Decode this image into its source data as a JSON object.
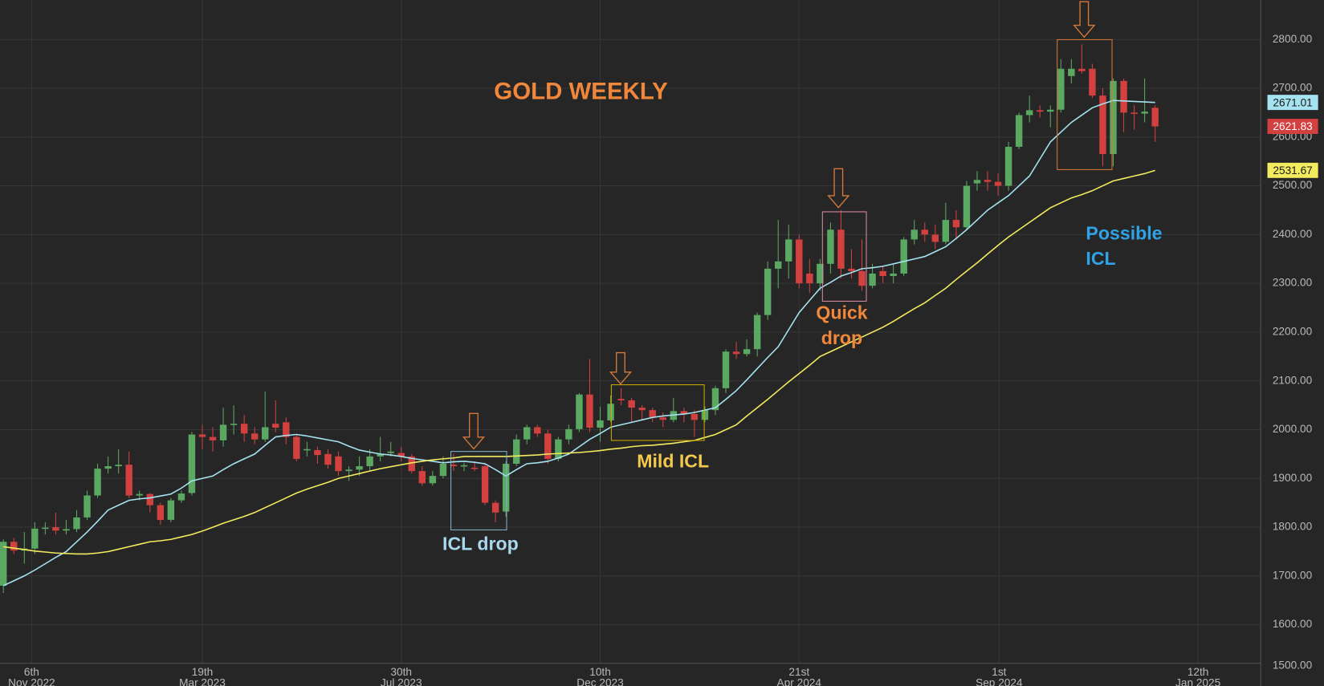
{
  "chart_data": {
    "type": "candlestick",
    "title": "GOLD WEEKLY",
    "open": [
      1680,
      1770,
      1752,
      1756,
      1797,
      1800,
      1793,
      1796,
      1820,
      1865,
      1920,
      1925,
      1928,
      1865,
      1868,
      1845,
      1815,
      1855,
      1870,
      1990,
      1985,
      1978,
      2010,
      2012,
      1992,
      1980,
      2012,
      2015,
      1985,
      1958,
      1958,
      1950,
      1945,
      1915,
      1918,
      1925,
      1945,
      1952,
      1952,
      1945,
      1915,
      1890,
      1905,
      1928,
      1925,
      1922,
      1925,
      1850,
      1832,
      1930,
      1980,
      2005,
      1992,
      1940,
      1980,
      2001,
      2072,
      2004,
      2019,
      2063,
      2060,
      2045,
      2040,
      2025,
      2020,
      2038,
      2032,
      2020,
      2040,
      2085,
      2160,
      2155,
      2165,
      2235,
      2330,
      2345,
      2390,
      2320,
      2300,
      2340,
      2410,
      2330,
      2325,
      2295,
      2325,
      2315,
      2320,
      2390,
      2410,
      2400,
      2385,
      2430,
      2415,
      2505,
      2512,
      2508,
      2500,
      2580,
      2645,
      2655,
      2652,
      2656,
      2725,
      2740,
      2740,
      2685,
      2565,
      2715,
      2650,
      2648,
      2660
    ],
    "high": [
      1775,
      1778,
      1790,
      1810,
      1810,
      1830,
      1815,
      1835,
      1875,
      1930,
      1945,
      1960,
      1955,
      1875,
      1870,
      1850,
      1860,
      1875,
      1995,
      2010,
      2005,
      2045,
      2050,
      2030,
      2005,
      2078,
      2060,
      2025,
      1990,
      1975,
      1965,
      1960,
      1955,
      1925,
      1945,
      1960,
      1985,
      1975,
      1965,
      1950,
      1925,
      1915,
      1945,
      1950,
      1932,
      1935,
      1930,
      1855,
      1935,
      1990,
      2010,
      2010,
      2000,
      1985,
      2010,
      2075,
      2145,
      2047,
      2070,
      2085,
      2065,
      2050,
      2045,
      2035,
      2065,
      2045,
      2040,
      2048,
      2090,
      2165,
      2180,
      2185,
      2240,
      2345,
      2430,
      2420,
      2400,
      2350,
      2350,
      2425,
      2450,
      2370,
      2390,
      2340,
      2335,
      2340,
      2395,
      2430,
      2425,
      2420,
      2465,
      2450,
      2510,
      2530,
      2530,
      2525,
      2590,
      2650,
      2685,
      2665,
      2665,
      2760,
      2760,
      2790,
      2750,
      2700,
      2720,
      2720,
      2665,
      2720,
      2665
    ],
    "low": [
      1665,
      1745,
      1725,
      1745,
      1785,
      1785,
      1785,
      1790,
      1815,
      1860,
      1910,
      1910,
      1860,
      1855,
      1830,
      1805,
      1810,
      1850,
      1865,
      1960,
      1955,
      1965,
      1990,
      1975,
      1970,
      1975,
      1995,
      1970,
      1935,
      1945,
      1930,
      1920,
      1905,
      1895,
      1905,
      1915,
      1935,
      1945,
      1935,
      1910,
      1885,
      1885,
      1900,
      1915,
      1915,
      1915,
      1845,
      1810,
      1822,
      1925,
      1970,
      1985,
      1930,
      1935,
      1970,
      1995,
      1995,
      1975,
      2015,
      2050,
      2015,
      2020,
      2015,
      2005,
      2015,
      2015,
      1985,
      2015,
      2030,
      2075,
      2145,
      2150,
      2150,
      2225,
      2290,
      2310,
      2290,
      2280,
      2285,
      2320,
      2310,
      2310,
      2285,
      2290,
      2300,
      2300,
      2315,
      2380,
      2385,
      2370,
      2380,
      2390,
      2410,
      2490,
      2490,
      2480,
      2490,
      2575,
      2630,
      2640,
      2620,
      2650,
      2710,
      2730,
      2680,
      2540,
      2540,
      2610,
      2615,
      2630,
      2590
    ],
    "close": [
      1770,
      1752,
      1756,
      1797,
      1799,
      1793,
      1796,
      1820,
      1865,
      1920,
      1925,
      1928,
      1865,
      1868,
      1845,
      1815,
      1855,
      1869,
      1990,
      1985,
      1978,
      2010,
      2012,
      1992,
      1980,
      2005,
      2004,
      1985,
      1940,
      1960,
      1948,
      1928,
      1915,
      1918,
      1925,
      1945,
      1950,
      1955,
      1945,
      1915,
      1890,
      1905,
      1930,
      1925,
      1927,
      1920,
      1850,
      1830,
      1930,
      1980,
      2005,
      1992,
      1940,
      1980,
      2001,
      2072,
      2004,
      2019,
      2053,
      2060,
      2045,
      2040,
      2025,
      2020,
      2038,
      2032,
      2020,
      2040,
      2085,
      2160,
      2155,
      2165,
      2235,
      2330,
      2345,
      2390,
      2300,
      2300,
      2340,
      2410,
      2330,
      2325,
      2295,
      2320,
      2315,
      2320,
      2390,
      2410,
      2400,
      2385,
      2430,
      2415,
      2500,
      2512,
      2508,
      2500,
      2580,
      2645,
      2655,
      2652,
      2656,
      2740,
      2740,
      2735,
      2685,
      2565,
      2715,
      2650,
      2648,
      2652,
      2621.83
    ],
    "up_color": "#5aa862",
    "down_color": "#d2403f",
    "lines": [
      {
        "color": "#a6e3f0",
        "values": [
          1680,
          1690,
          1700,
          1712,
          1725,
          1738,
          1750,
          1770,
          1790,
          1812,
          1835,
          1845,
          1855,
          1858,
          1860,
          1864,
          1868,
          1880,
          1895,
          1900,
          1905,
          1918,
          1930,
          1940,
          1950,
          1968,
          1985,
          1988,
          1990,
          1987,
          1983,
          1979,
          1975,
          1966,
          1958,
          1954,
          1950,
          1948,
          1945,
          1941,
          1938,
          1935,
          1932,
          1934,
          1935,
          1933,
          1930,
          1918,
          1905,
          1918,
          1930,
          1932,
          1935,
          1942,
          1950,
          1965,
          1980,
          1992,
          2005,
          2010,
          2015,
          2020,
          2025,
          2028,
          2030,
          2032,
          2035,
          2040,
          2045,
          2062,
          2080,
          2102,
          2125,
          2148,
          2170,
          2205,
          2240,
          2265,
          2290,
          2302,
          2315,
          2322,
          2330,
          2332,
          2335,
          2340,
          2345,
          2350,
          2355,
          2365,
          2375,
          2392,
          2410,
          2430,
          2450,
          2465,
          2480,
          2500,
          2520,
          2555,
          2590,
          2610,
          2630,
          2645,
          2660,
          2668,
          2675,
          2674,
          2673,
          2672,
          2671.01
        ]
      },
      {
        "color": "#f3ec5e",
        "values": [
          1760,
          1757,
          1754,
          1751,
          1749,
          1747,
          1746,
          1745,
          1745,
          1747,
          1750,
          1755,
          1760,
          1765,
          1770,
          1772,
          1775,
          1780,
          1785,
          1792,
          1800,
          1808,
          1815,
          1822,
          1830,
          1840,
          1850,
          1860,
          1870,
          1878,
          1885,
          1892,
          1900,
          1905,
          1910,
          1915,
          1920,
          1924,
          1928,
          1932,
          1935,
          1938,
          1940,
          1942,
          1945,
          1945,
          1945,
          1945,
          1945,
          1946,
          1947,
          1948,
          1950,
          1951,
          1952,
          1953,
          1955,
          1957,
          1960,
          1962,
          1965,
          1967,
          1968,
          1970,
          1972,
          1975,
          1978,
          1984,
          1990,
          2000,
          2010,
          2028,
          2045,
          2062,
          2080,
          2098,
          2115,
          2132,
          2150,
          2160,
          2170,
          2180,
          2190,
          2200,
          2210,
          2222,
          2235,
          2248,
          2260,
          2275,
          2290,
          2308,
          2325,
          2342,
          2360,
          2378,
          2395,
          2410,
          2425,
          2440,
          2455,
          2465,
          2475,
          2482,
          2490,
          2500,
          2510,
          2515,
          2520,
          2525,
          2531.67
        ]
      }
    ],
    "ylim": [
      1521,
      2881
    ],
    "yticks": [
      {
        "value": 1500,
        "label": "1500.00"
      },
      {
        "value": 1600,
        "label": "1600.00"
      },
      {
        "value": 1700,
        "label": "1700.00"
      },
      {
        "value": 1800,
        "label": "1800.00"
      },
      {
        "value": 1900,
        "label": "1900.00"
      },
      {
        "value": 2000,
        "label": "2000.00"
      },
      {
        "value": 2100,
        "label": "2100.00"
      },
      {
        "value": 2200,
        "label": "2200.00"
      },
      {
        "value": 2300,
        "label": "2300.00"
      },
      {
        "value": 2400,
        "label": "2400.00"
      },
      {
        "value": 2500,
        "label": "2500.00"
      },
      {
        "value": 2600,
        "label": "2600.00"
      },
      {
        "value": 2700,
        "label": "2700.00"
      },
      {
        "value": 2800,
        "label": "2800.00"
      }
    ],
    "xticks": [
      {
        "value": 2.7,
        "label": [
          "6th",
          "Nov 2022"
        ]
      },
      {
        "value": 19,
        "label": [
          "19th",
          "Mar 2023"
        ]
      },
      {
        "value": 38,
        "label": [
          "30th",
          "Jul 2023"
        ]
      },
      {
        "value": 57,
        "label": [
          "10th",
          "Dec 2023"
        ]
      },
      {
        "value": 76,
        "label": [
          "21st",
          "Apr 2024"
        ]
      },
      {
        "value": 95.1,
        "label": [
          "1st",
          "Sep 2024"
        ]
      },
      {
        "value": 114.1,
        "label": [
          "12th",
          "Jan 2025"
        ]
      }
    ],
    "grid": true,
    "annotations": [
      "ICL drop",
      "Mild ICL",
      [
        "Quick",
        "drop"
      ],
      [
        "Possible",
        "ICL"
      ]
    ]
  }
}
